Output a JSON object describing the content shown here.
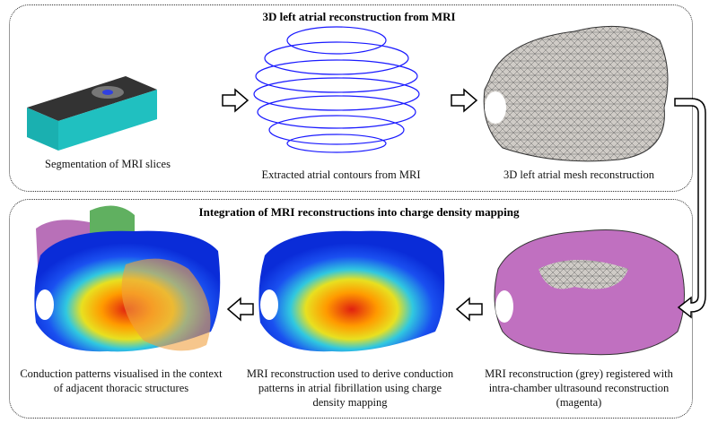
{
  "top_panel": {
    "title": "3D left atrial reconstruction from MRI",
    "steps": [
      {
        "caption": "Segmentation of MRI slices"
      },
      {
        "caption": "Extracted atrial contours from MRI"
      },
      {
        "caption": "3D left atrial mesh reconstruction"
      }
    ]
  },
  "bottom_panel": {
    "title": "Integration of MRI reconstructions into charge density mapping",
    "steps": [
      {
        "caption": "Conduction patterns visualised in the context of adjacent thoracic structures"
      },
      {
        "caption": "MRI reconstruction used to derive conduction patterns in atrial fibrillation using charge density mapping"
      },
      {
        "caption": "MRI reconstruction (grey) registered with intra-chamber ultrasound reconstruction (magenta)"
      }
    ]
  },
  "colors": {
    "contour": "#1a1aff",
    "mesh": "#c8c4c0",
    "magenta": "#c070c0",
    "heat_low": "#0a2cd8",
    "heat_high": "#e02010"
  }
}
